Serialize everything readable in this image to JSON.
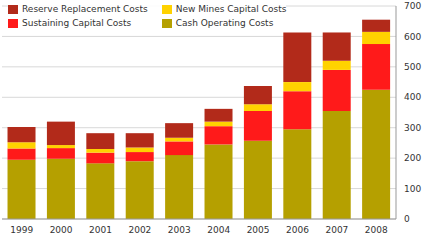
{
  "chart_data": {
    "type": "bar",
    "stacked": true,
    "grid": true,
    "legend": "upper left",
    "categories": [
      "1999",
      "2000",
      "2001",
      "2002",
      "2003",
      "2004",
      "2005",
      "2006",
      "2007",
      "2008"
    ],
    "series": [
      {
        "name": "Cash Operating Costs",
        "color": "#b5a000",
        "values": [
          195,
          198,
          183,
          190,
          210,
          245,
          257,
          295,
          355,
          425
        ]
      },
      {
        "name": "Sustaining Capital Costs",
        "color": "#ff1a1a",
        "values": [
          37,
          35,
          35,
          30,
          45,
          60,
          98,
          125,
          135,
          150
        ]
      },
      {
        "name": "New Mines Capital Costs",
        "color": "#ffd200",
        "values": [
          20,
          10,
          12,
          15,
          12,
          15,
          22,
          30,
          30,
          40
        ]
      },
      {
        "name": "Reserve Replacement Costs",
        "color": "#b22a1a",
        "values": [
          50,
          77,
          52,
          47,
          48,
          42,
          60,
          163,
          93,
          40
        ]
      }
    ],
    "ylim": [
      0,
      700
    ],
    "yticks": [
      0,
      100,
      200,
      300,
      400,
      500,
      600,
      700
    ]
  }
}
